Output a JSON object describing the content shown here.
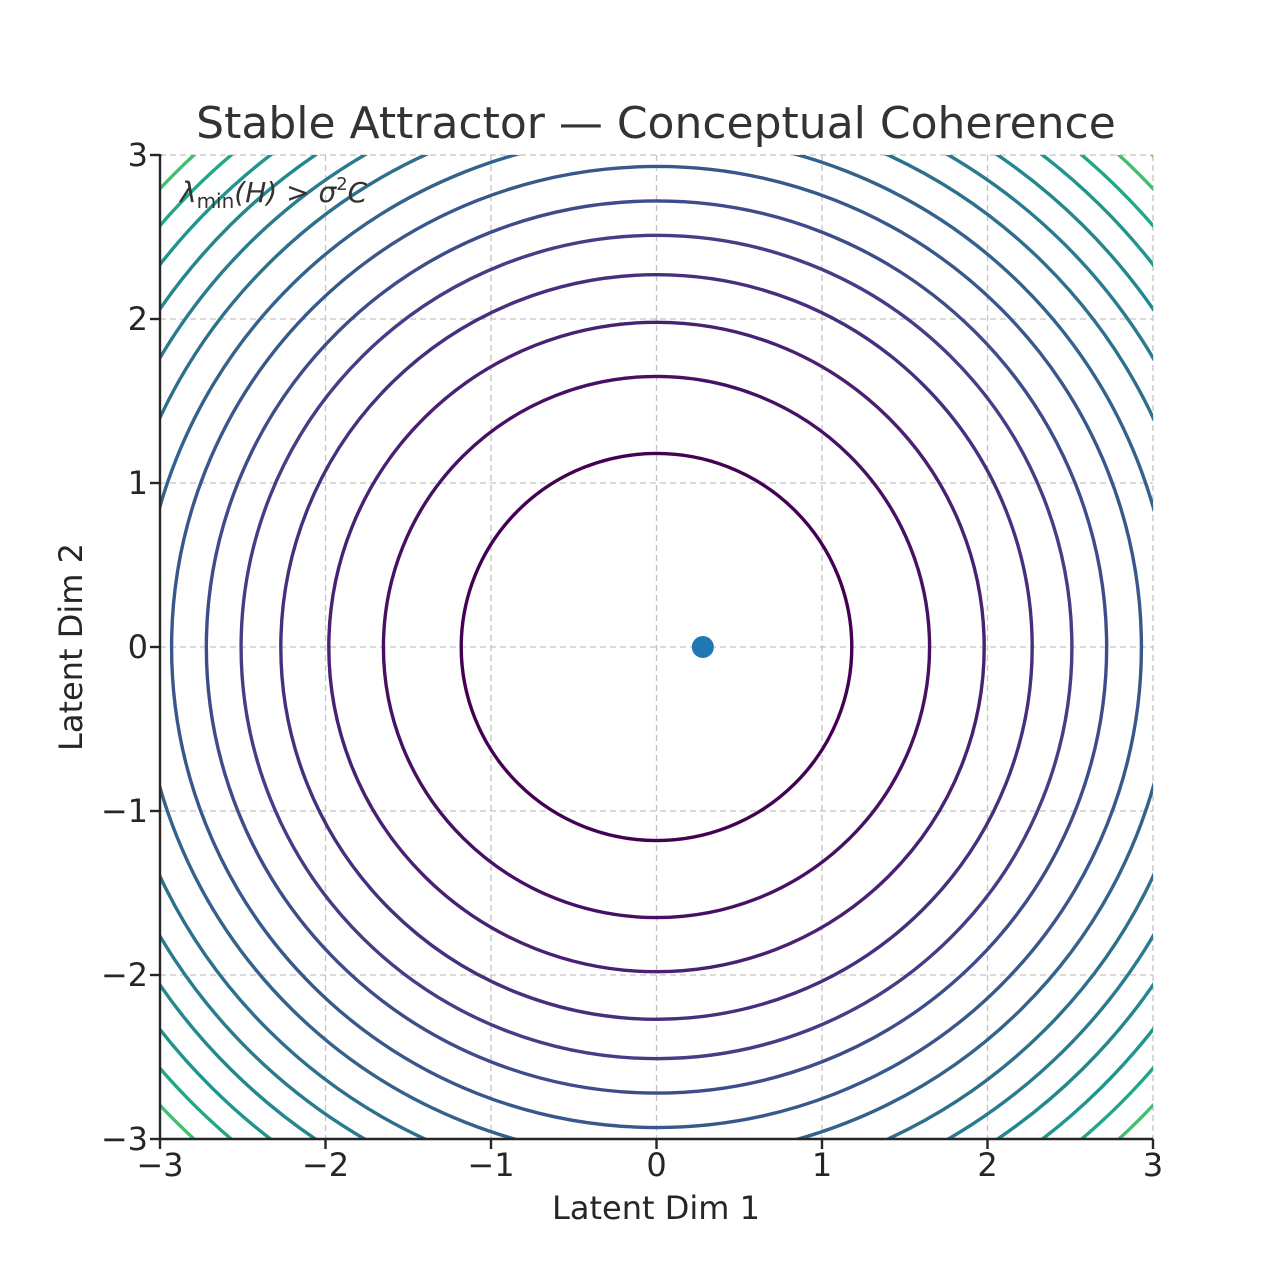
{
  "chart_data": {
    "type": "contour",
    "title": "Stable Attractor — Conceptual Coherence",
    "xlabel": "Latent Dim 1",
    "ylabel": "Latent Dim 2",
    "xlim": [
      -3,
      3
    ],
    "ylim": [
      -3,
      3
    ],
    "xticks": [
      -3,
      -2,
      -1,
      0,
      1,
      2,
      3
    ],
    "yticks": [
      -3,
      -2,
      -1,
      0,
      1,
      2,
      3
    ],
    "xtick_labels": [
      "−3",
      "−2",
      "−1",
      "0",
      "1",
      "2",
      "3"
    ],
    "ytick_labels": [
      "−3",
      "−2",
      "−1",
      "0",
      "1",
      "2",
      "3"
    ],
    "grid": true,
    "colormap": "viridis",
    "contour_center": [
      0,
      0
    ],
    "contour_radii": [
      1.18,
      1.65,
      1.98,
      2.27,
      2.51,
      2.72,
      2.93,
      3.12,
      3.31,
      3.48,
      3.64,
      3.8,
      3.95,
      4.1,
      4.24
    ],
    "contour_colors": [
      "#440154",
      "#471063",
      "#482172",
      "#46307e",
      "#433e85",
      "#3e4c8a",
      "#38588c",
      "#33638d",
      "#2d708e",
      "#287c8e",
      "#23888e",
      "#1f958b",
      "#22a884",
      "#44bf70",
      "#7ad151",
      "#bddf26"
    ],
    "point": {
      "x": 0.28,
      "y": 0.0,
      "color": "#1f77b4"
    },
    "annotation": {
      "lambda": "λ",
      "sub": "min",
      "mid": "(H) > σ",
      "sup": "2",
      "end": "C"
    }
  }
}
